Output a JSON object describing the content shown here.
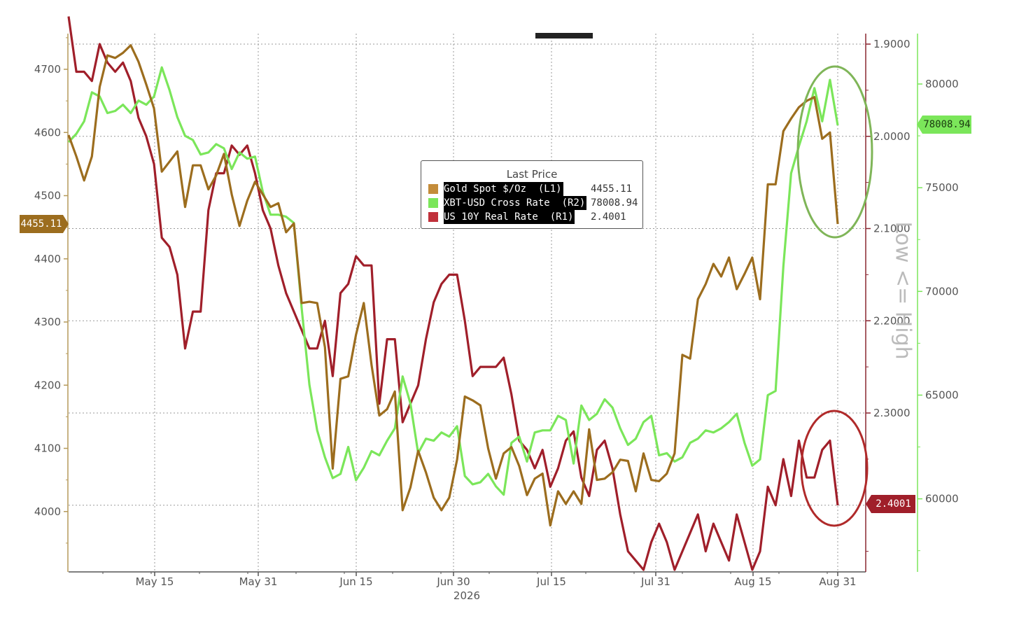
{
  "chart_data": {
    "type": "line",
    "title": "",
    "year_label": "2026",
    "x_ticks": [
      "May 15",
      "May 31",
      "Jun 15",
      "Jun 30",
      "Jul 15",
      "Jul 31",
      "Aug 15",
      "Aug 31"
    ],
    "left_axis": {
      "ticks": [
        "4700",
        "4600",
        "4500",
        "4400",
        "4300",
        "4200",
        "4100",
        "4000"
      ],
      "range": [
        3900,
        4760
      ]
    },
    "right1_axis": {
      "ticks": [
        "1.9000",
        "2.0000",
        "2.1000",
        "2.2000",
        "2.3000"
      ],
      "range": [
        1.88,
        2.56
      ],
      "inverted": true
    },
    "right2_axis": {
      "ticks": [
        "80000",
        "75000",
        "70000",
        "65000",
        "60000"
      ],
      "range": [
        57400,
        81500
      ]
    },
    "legend": {
      "title": "Last Price",
      "entries": [
        {
          "name": "Gold Spot $/Oz  (L1)",
          "value": "4455.11",
          "color": "#b8862e"
        },
        {
          "name": "XBT-USD Cross Rate  (R2)",
          "value": "78008.94",
          "color": "#7be65a"
        },
        {
          "name": "US 10Y Real Rate  (R1)",
          "value": "2.4001",
          "color": "#c0303a"
        }
      ]
    },
    "last_price_tags": {
      "gold": "4455.11",
      "xbt": "78008.94",
      "real_rate": "2.4001"
    },
    "annotation": "Low <= High",
    "series": [
      {
        "name": "Gold Spot $/Oz  (L1)",
        "axis": "left",
        "color": "#9c6d1e",
        "values": [
          4596,
          4562,
          4524,
          4562,
          4672,
          4722,
          4718,
          4726,
          4738,
          4712,
          4676,
          4638,
          4538,
          4554,
          4570,
          4482,
          4548,
          4548,
          4510,
          4532,
          4566,
          4502,
          4452,
          4492,
          4522,
          4502,
          4482,
          4488,
          4442,
          4456,
          4330,
          4332,
          4330,
          4260,
          4068,
          4210,
          4214,
          4280,
          4330,
          4232,
          4152,
          4162,
          4190,
          4002,
          4038,
          4096,
          4062,
          4022,
          4002,
          4022,
          4082,
          4182,
          4176,
          4168,
          4100,
          4052,
          4092,
          4102,
          4072,
          4026,
          4052,
          4060,
          3978,
          4032,
          4012,
          4032,
          4012,
          4130,
          4050,
          4052,
          4062,
          4082,
          4080,
          4032,
          4092,
          4050,
          4048,
          4060,
          4092,
          4248,
          4242,
          4336,
          4360,
          4392,
          4372,
          4402,
          4352,
          4376,
          4402,
          4336,
          4518,
          4518,
          4602,
          4622,
          4640,
          4650,
          4656,
          4590,
          4600,
          4455.11
        ]
      },
      {
        "name": "XBT-USD Cross Rate  (R2)",
        "axis": "right2",
        "color": "#7be65a",
        "values": [
          77200,
          77600,
          78200,
          79600,
          79400,
          78600,
          78700,
          79000,
          78600,
          79200,
          79000,
          79400,
          80800,
          79700,
          78400,
          77500,
          77300,
          76600,
          76700,
          77100,
          76900,
          75900,
          76700,
          76400,
          76500,
          74800,
          73700,
          73700,
          73600,
          73300,
          69200,
          65500,
          63300,
          62000,
          61000,
          61200,
          62500,
          60900,
          61500,
          62300,
          62100,
          62800,
          63400,
          65900,
          64600,
          62200,
          62900,
          62800,
          63200,
          63000,
          63500,
          61100,
          60700,
          60800,
          61200,
          60600,
          60200,
          62700,
          63000,
          61800,
          63200,
          63300,
          63300,
          64000,
          63800,
          61700,
          64500,
          63800,
          64100,
          64800,
          64400,
          63400,
          62600,
          62900,
          63700,
          64000,
          62100,
          62200,
          61800,
          62000,
          62700,
          62900,
          63300,
          63200,
          63400,
          63700,
          64100,
          62700,
          61600,
          61900,
          65000,
          65200,
          71200,
          75700,
          77000,
          78200,
          79800,
          78200,
          80200,
          78008.94
        ]
      },
      {
        "name": "US 10Y Real Rate  (R1)",
        "axis": "right1",
        "color": "#a01f2a",
        "values": [
          1.87,
          1.93,
          1.93,
          1.94,
          1.9,
          1.92,
          1.93,
          1.92,
          1.94,
          1.98,
          2.0,
          2.03,
          2.11,
          2.12,
          2.15,
          2.23,
          2.19,
          2.19,
          2.08,
          2.04,
          2.04,
          2.01,
          2.02,
          2.01,
          2.04,
          2.08,
          2.1,
          2.14,
          2.17,
          2.19,
          2.21,
          2.23,
          2.23,
          2.2,
          2.26,
          2.17,
          2.16,
          2.13,
          2.14,
          2.14,
          2.29,
          2.22,
          2.22,
          2.31,
          2.29,
          2.27,
          2.22,
          2.18,
          2.16,
          2.15,
          2.15,
          2.2,
          2.26,
          2.25,
          2.25,
          2.25,
          2.24,
          2.28,
          2.33,
          2.34,
          2.36,
          2.34,
          2.38,
          2.36,
          2.33,
          2.32,
          2.37,
          2.39,
          2.34,
          2.33,
          2.36,
          2.41,
          2.45,
          2.46,
          2.47,
          2.44,
          2.42,
          2.44,
          2.47,
          2.45,
          2.43,
          2.41,
          2.45,
          2.42,
          2.44,
          2.46,
          2.41,
          2.44,
          2.47,
          2.45,
          2.38,
          2.4,
          2.35,
          2.39,
          2.33,
          2.37,
          2.37,
          2.34,
          2.33,
          2.4001
        ]
      }
    ]
  }
}
